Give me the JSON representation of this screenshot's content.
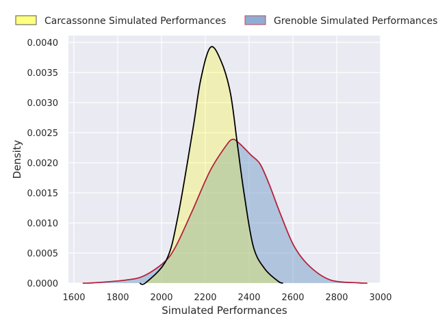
{
  "chart_data": {
    "type": "area",
    "title": "",
    "xlabel": "Simulated Performances",
    "ylabel": "Density",
    "xlim": [
      1580,
      3000
    ],
    "ylim": [
      0,
      0.0041
    ],
    "xticks": [
      1600,
      1800,
      2000,
      2200,
      2400,
      2600,
      2800,
      3000
    ],
    "yticks": [
      0.0,
      0.0005,
      0.001,
      0.0015,
      0.002,
      0.0025,
      0.003,
      0.0035,
      0.004
    ],
    "ytick_labels": [
      "0.0000",
      "0.0005",
      "0.0010",
      "0.0015",
      "0.0020",
      "0.0025",
      "0.0030",
      "0.0035",
      "0.0040"
    ],
    "grid": true,
    "legend_position": "top",
    "series": [
      {
        "name": "Grenoble Simulated Performances",
        "fill": "#769eca",
        "line": "#b5213a",
        "x": [
          1640,
          1690,
          1835,
          1919,
          2013,
          2065,
          2138,
          2221,
          2294,
          2325,
          2356,
          2408,
          2450,
          2492,
          2544,
          2606,
          2679,
          2773,
          2898,
          2940
        ],
        "y": [
          0,
          5e-06,
          5e-05,
          0.00012,
          0.00035,
          0.00061,
          0.00118,
          0.00186,
          0.00228,
          0.00239,
          0.00232,
          0.00213,
          0.00198,
          0.00164,
          0.00114,
          0.00061,
          0.00027,
          5e-05,
          5e-06,
          0
        ]
      },
      {
        "name": "Carcassonne Simulated Performances",
        "fill": "#ffff00",
        "line": "#000000",
        "x": [
          1900,
          1929,
          2023,
          2075,
          2143,
          2179,
          2224,
          2273,
          2315,
          2346,
          2377,
          2419,
          2471,
          2533,
          2555
        ],
        "y": [
          0,
          1e-05,
          0.00039,
          0.00111,
          0.00255,
          0.00338,
          0.00392,
          0.00368,
          0.00315,
          0.00232,
          0.00149,
          0.00061,
          0.00024,
          3e-05,
          0
        ]
      }
    ]
  }
}
